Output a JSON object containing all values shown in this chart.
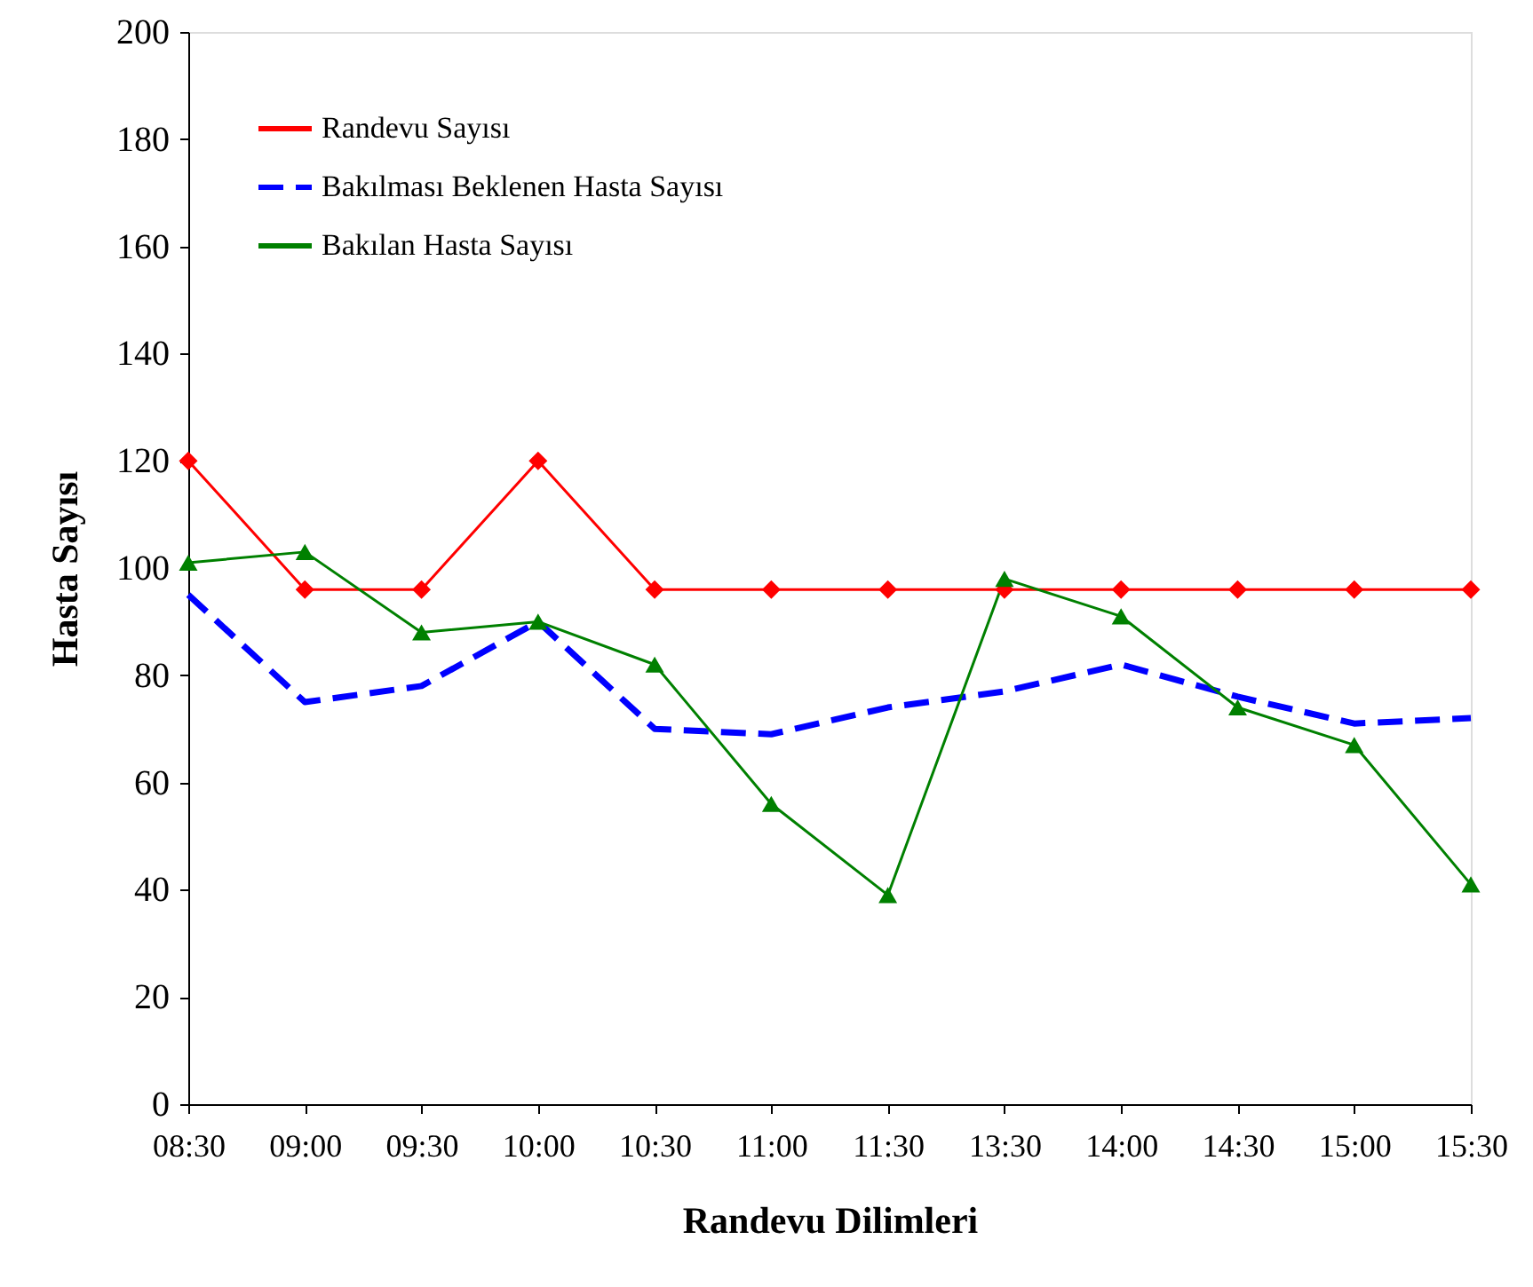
{
  "chart_data": {
    "type": "line",
    "xlabel": "Randevu Dilimleri",
    "ylabel": "Hasta Sayısı",
    "categories": [
      "08:30",
      "09:00",
      "09:30",
      "10:00",
      "10:30",
      "11:00",
      "11:30",
      "13:30",
      "14:00",
      "14:30",
      "15:00",
      "15:30"
    ],
    "ylim": [
      0,
      200
    ],
    "yticks": [
      0,
      20,
      40,
      60,
      80,
      100,
      120,
      140,
      160,
      180,
      200
    ],
    "grid": false,
    "legend": "top left",
    "series": [
      {
        "name": "Randevu Sayısı",
        "color": "#ff0000",
        "marker": "diamond",
        "line_style": "solid",
        "values": [
          120,
          96,
          96,
          120,
          96,
          96,
          96,
          96,
          96,
          96,
          96,
          96
        ]
      },
      {
        "name": "Bakılması Beklenen Hasta Sayısı",
        "color": "#0000ff",
        "marker": "none",
        "line_style": "dashed",
        "values": [
          95,
          75,
          78,
          90,
          70,
          69,
          74,
          77,
          82,
          76,
          71,
          72
        ]
      },
      {
        "name": "Bakılan Hasta Sayısı",
        "color": "#008000",
        "marker": "triangle",
        "line_style": "solid",
        "values": [
          101,
          103,
          88,
          90,
          82,
          56,
          39,
          98,
          91,
          74,
          67,
          41
        ]
      }
    ]
  }
}
